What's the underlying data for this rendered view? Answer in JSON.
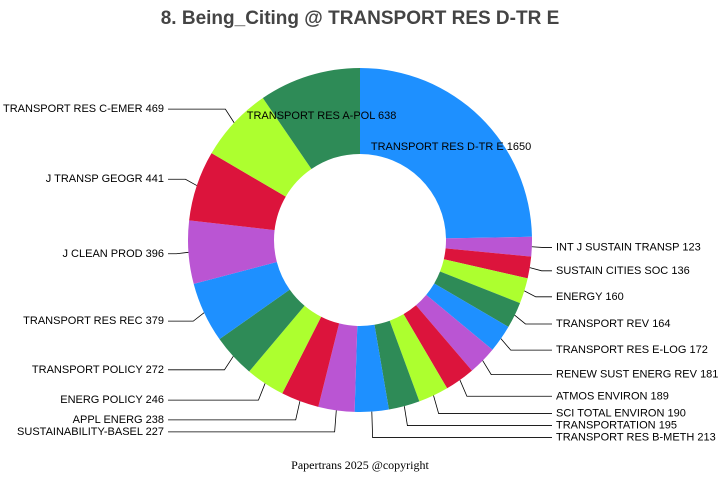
{
  "chart_data": {
    "type": "donut",
    "title": "8. Being_Citing @ TRANSPORT RES D-TR E",
    "footer": "Papertrans 2025 @copyright",
    "categories": [
      "TRANSPORT RES D-TR E",
      "INT J SUSTAIN TRANSP",
      "SUSTAIN CITIES SOC",
      "ENERGY",
      "TRANSPORT REV",
      "TRANSPORT RES E-LOG",
      "RENEW SUST ENERG REV",
      "ATMOS ENVIRON",
      "SCI TOTAL ENVIRON",
      "TRANSPORTATION",
      "TRANSPORT RES B-METH",
      "SUSTAINABILITY-BASEL",
      "APPL ENERG",
      "ENERG POLICY",
      "TRANSPORT POLICY",
      "TRANSPORT RES REC",
      "J CLEAN PROD",
      "J TRANSP GEOGR",
      "TRANSPORT RES C-EMER",
      "TRANSPORT RES A-POL"
    ],
    "values": [
      1650,
      123,
      136,
      160,
      164,
      172,
      181,
      189,
      190,
      195,
      213,
      227,
      238,
      246,
      272,
      379,
      396,
      441,
      469,
      638
    ],
    "colors": [
      "#1e90ff",
      "#ba55d3",
      "#dc143c",
      "#adff2f",
      "#2e8b57",
      "#1e90ff",
      "#ba55d3",
      "#dc143c",
      "#adff2f",
      "#2e8b57",
      "#1e90ff",
      "#ba55d3",
      "#dc143c",
      "#adff2f",
      "#2e8b57",
      "#1e90ff",
      "#ba55d3",
      "#dc143c",
      "#adff2f",
      "#2e8b57"
    ]
  }
}
